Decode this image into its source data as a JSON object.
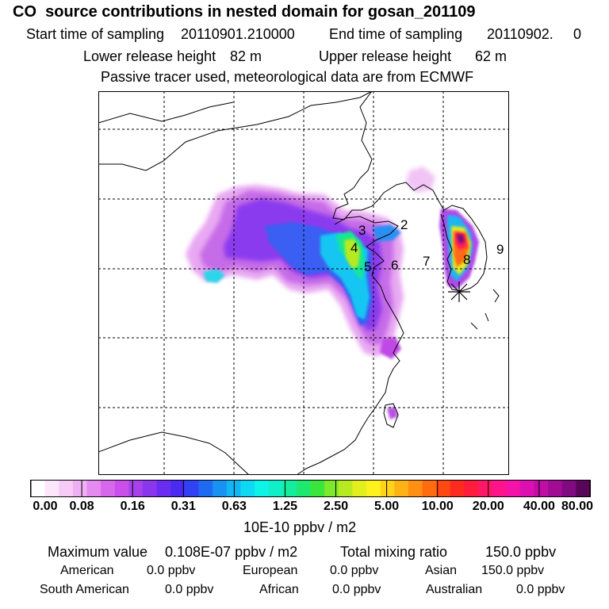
{
  "title": "CO  source contributions in nested domain for gosan_201109",
  "header": {
    "start_label": "Start time of sampling",
    "start_value": "20110901.210000",
    "end_label": "End time of sampling",
    "end_value": "20110902.",
    "end_suffix": "0",
    "lower_label": "Lower release height",
    "lower_value": "82 m",
    "upper_label": "Upper release height",
    "upper_value": "62 m",
    "note": "Passive tracer used, meteorological data are from ECMWF"
  },
  "map": {
    "region_labels": [
      "2",
      "3",
      "4",
      "5",
      "6",
      "7",
      "8",
      "9"
    ],
    "receptor_marker": "asterisk-icon"
  },
  "colorbar": {
    "ticks": [
      "0.00",
      "0.08",
      "0.16",
      "0.31",
      "0.63",
      "1.25",
      "2.50",
      "5.00",
      "10.00",
      "20.00",
      "40.00",
      "80.00"
    ],
    "unit": "10E-10 ppbv / m2",
    "colors": [
      "#ffffff",
      "#fbe6fb",
      "#f6ccf6",
      "#efb0f3",
      "#e58af0",
      "#d668ec",
      "#c84fe9",
      "#a742ea",
      "#8a35ee",
      "#6a2cf0",
      "#4b2bf2",
      "#3042f3",
      "#1e6af2",
      "#1792f2",
      "#11b6f2",
      "#0fd8f2",
      "#0ff2e8",
      "#11efc8",
      "#16ec9e",
      "#1ee870",
      "#3ae63c",
      "#7ee82a",
      "#b8ea22",
      "#e2ee1e",
      "#fff21c",
      "#ffd418",
      "#ffb214",
      "#ff9012",
      "#ff6c10",
      "#ff4812",
      "#ff2a20",
      "#ff1c3c",
      "#ff1866",
      "#ff148c",
      "#f412a8",
      "#dc10b0",
      "#c00ea4",
      "#a00c94",
      "#800a80",
      "#5a0658"
    ]
  },
  "stats": {
    "max_label": "Maximum value",
    "max_value": "0.108E-07 ppbv / m2",
    "total_label": "Total mixing ratio",
    "total_value": "150.0 ppbv",
    "american_label": "American",
    "american_value": "0.0 ppbv",
    "european_label": "European",
    "european_value": "0.0 ppbv",
    "asian_label": "Asian",
    "asian_value": "150.0 ppbv",
    "south_american_label": "South American",
    "south_american_value": "0.0 ppbv",
    "african_label": "African",
    "african_value": "0.0 ppbv",
    "australian_label": "Australian",
    "australian_value": "0.0 ppbv"
  }
}
